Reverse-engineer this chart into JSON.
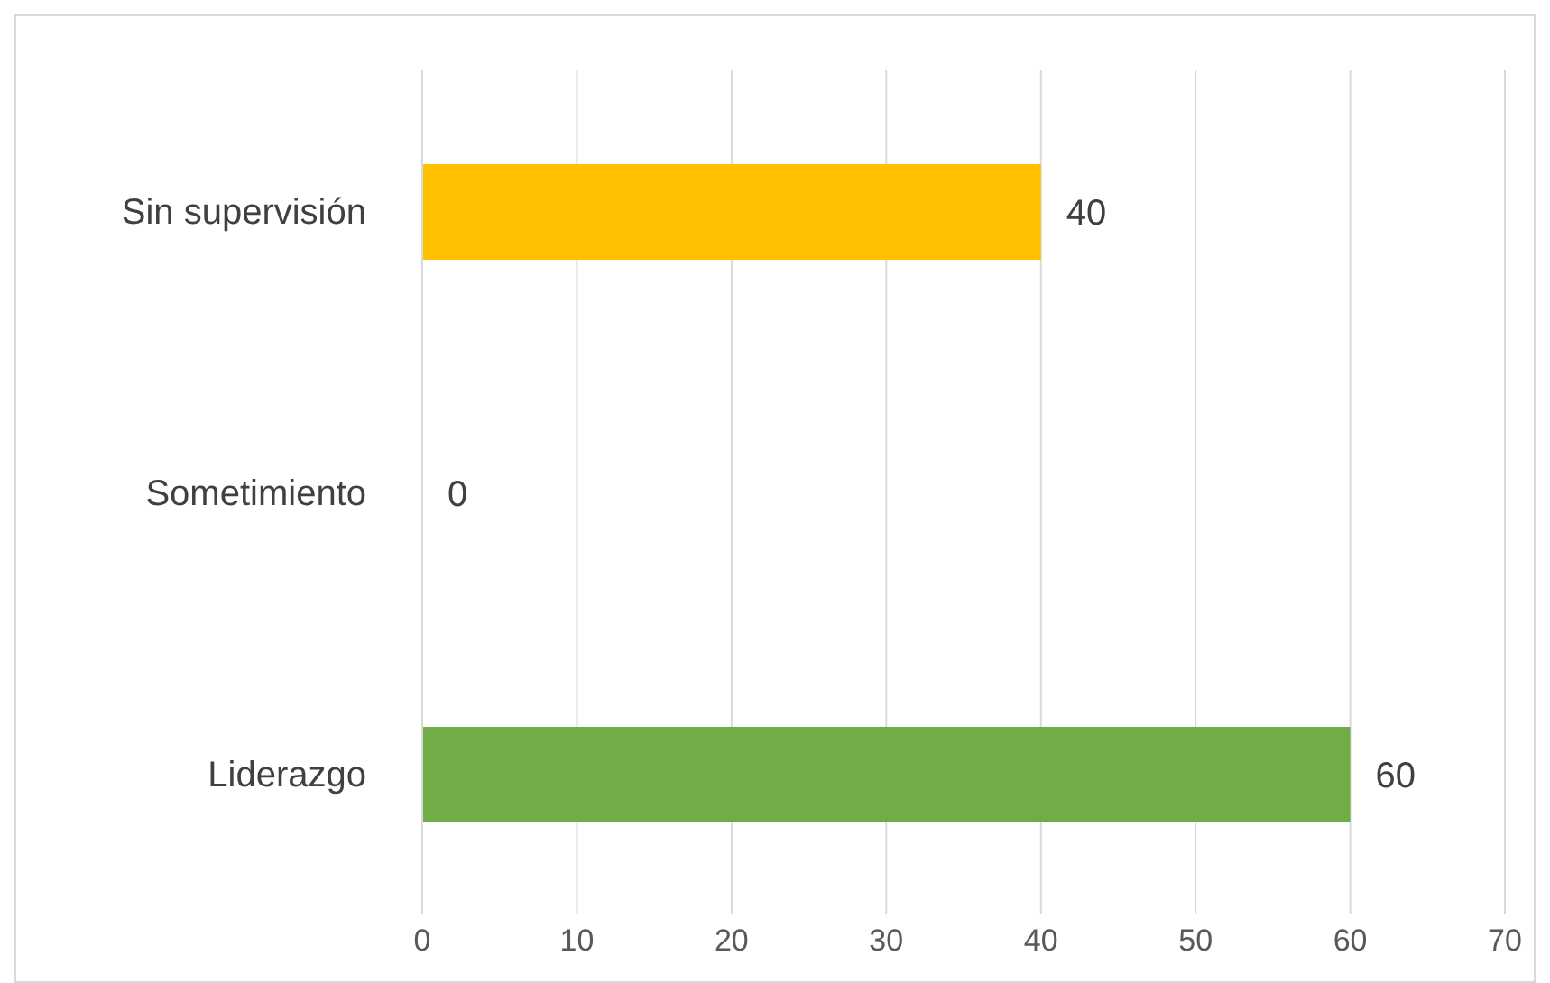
{
  "chart_data": {
    "type": "bar",
    "orientation": "horizontal",
    "categories": [
      "Sin supervisión",
      "Sometimiento",
      "Liderazgo"
    ],
    "values": [
      40,
      0,
      60
    ],
    "colors": [
      "#ffc000",
      "#4472c4",
      "#70ad47"
    ],
    "xlim": [
      0,
      70
    ],
    "xticks": [
      0,
      10,
      20,
      30,
      40,
      50,
      60,
      70
    ],
    "grid": "x",
    "data_labels": true
  }
}
